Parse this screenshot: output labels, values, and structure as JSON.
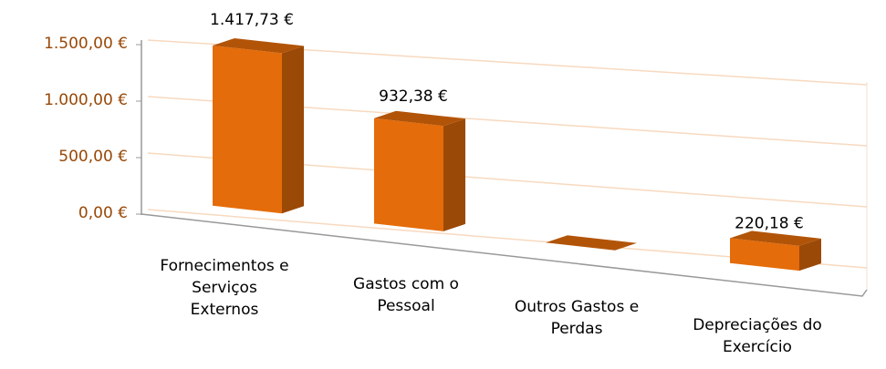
{
  "chart_data": {
    "type": "bar3d",
    "categories": [
      "Fornecimentos e Serviços Externos",
      "Gastos com o Pessoal",
      "Outros Gastos e Perdas",
      "Depreciações do Exercício"
    ],
    "values": [
      1417.73,
      932.38,
      0,
      220.18
    ],
    "value_labels": [
      "1.417,73 €",
      "932,38 €",
      null,
      "220,18 €"
    ],
    "color": "#e46c0a",
    "ylim": [
      0,
      1500
    ],
    "yticks": [
      {
        "value": 0,
        "label": "0,00 €"
      },
      {
        "value": 500,
        "label": "500,00 €"
      },
      {
        "value": 1000,
        "label": "1.000,00 €"
      },
      {
        "value": 1500,
        "label": "1.500,00 €"
      }
    ],
    "grid": true
  }
}
